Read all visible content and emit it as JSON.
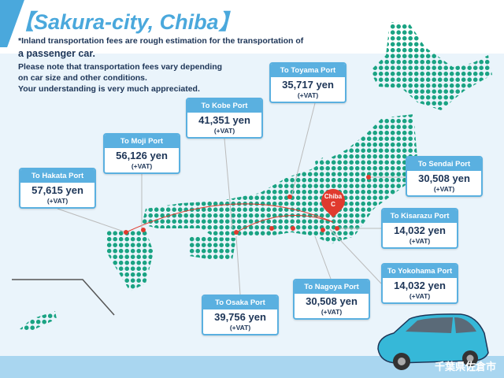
{
  "title": "【Sakura-city, Chiba】",
  "notes": [
    "*Inland transportation fees are rough estimation for the transportation of",
    "a passenger car.",
    "Please note that transportation fees vary depending",
    "on car size and other conditions.",
    "Your understanding is very much appreciated."
  ],
  "origin": {
    "label": "Chiba",
    "marker": "C",
    "color": "#e03a2e"
  },
  "ports": [
    {
      "name": "To Hakata Port",
      "fee": "57,615 yen",
      "tax": "(+VAT)"
    },
    {
      "name": "To Moji Port",
      "fee": "56,126 yen",
      "tax": "(+VAT)"
    },
    {
      "name": "To Kobe Port",
      "fee": "41,351 yen",
      "tax": "(+VAT)"
    },
    {
      "name": "To Toyama Port",
      "fee": "35,717 yen",
      "tax": "(+VAT)"
    },
    {
      "name": "To Sendai Port",
      "fee": "30,508 yen",
      "tax": "(+VAT)"
    },
    {
      "name": "To Kisarazu Port",
      "fee": "14,032 yen",
      "tax": "(+VAT)"
    },
    {
      "name": "To Yokohama Port",
      "fee": "14,032 yen",
      "tax": "(+VAT)"
    },
    {
      "name": "To Nagoya Port",
      "fee": "30,508 yen",
      "tax": "(+VAT)"
    },
    {
      "name": "To Osaka Port",
      "fee": "39,756 yen",
      "tax": "(+VAT)"
    }
  ],
  "watermark": "千葉県佐倉市",
  "colors": {
    "accent": "#4aa8dc",
    "map": "#1aa383",
    "route": "#e03a2e"
  }
}
